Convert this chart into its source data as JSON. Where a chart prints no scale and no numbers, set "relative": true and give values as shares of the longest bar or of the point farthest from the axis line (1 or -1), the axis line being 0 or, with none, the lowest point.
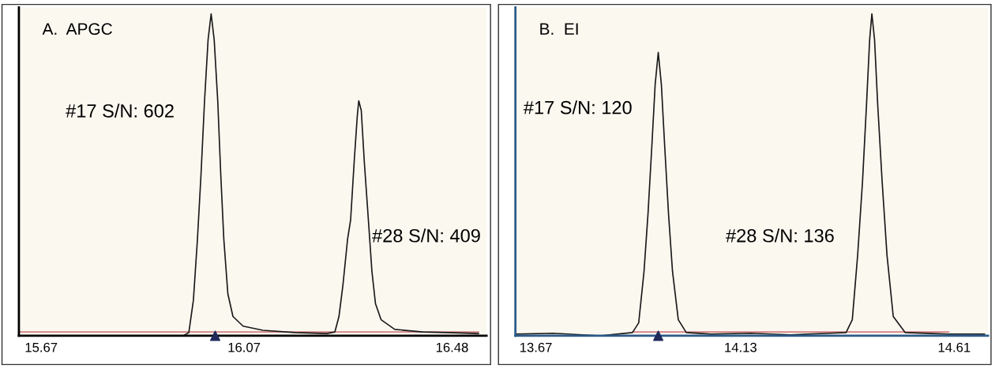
{
  "chart_data": [
    {
      "type": "line",
      "title": "A.  APGC",
      "relative": true,
      "xlim": [
        15.626,
        16.548
      ],
      "xticks": [
        15.67,
        16.07,
        16.48
      ],
      "grid": false,
      "legend": false,
      "series": [
        {
          "color": "#d08080",
          "x": [
            15.626,
            16.532
          ],
          "values": [
            0.012,
            0.012
          ]
        },
        {
          "color": "#1a1a1a",
          "x": [
            15.626,
            15.746,
            15.95,
            15.961,
            15.97,
            15.978,
            15.985,
            15.992,
            15.999,
            16.005,
            16.011,
            16.018,
            16.024,
            16.03,
            16.038,
            16.048,
            16.068,
            16.107,
            16.17,
            16.233,
            16.249,
            16.257,
            16.265,
            16.274,
            16.28,
            16.287,
            16.293,
            16.296,
            16.301,
            16.307,
            16.315,
            16.322,
            16.329,
            16.34,
            16.367,
            16.422,
            16.469,
            16.532
          ],
          "values": [
            0,
            0,
            0,
            0.01,
            0.11,
            0.3,
            0.5,
            0.73,
            0.92,
            1.0,
            0.92,
            0.73,
            0.5,
            0.3,
            0.13,
            0.06,
            0.03,
            0.017,
            0.01,
            0.007,
            0.012,
            0.06,
            0.16,
            0.3,
            0.36,
            0.54,
            0.68,
            0.73,
            0.7,
            0.54,
            0.36,
            0.2,
            0.1,
            0.05,
            0.02,
            0.012,
            0.01,
            0.007
          ]
        },
        {
          "type": "scatter",
          "marker": "triangle",
          "color": "#1f2a5a",
          "x": [
            16.013
          ],
          "values": [
            0
          ]
        }
      ],
      "annotations": [
        "#17 S/N: 602",
        "#28 S/N: 409"
      ]
    },
    {
      "type": "line",
      "title": "B.  EI",
      "relative": true,
      "xlim": [
        13.624,
        14.686
      ],
      "xticks": [
        13.67,
        14.13,
        14.61
      ],
      "grid": false,
      "legend": false,
      "series": [
        {
          "color": "#d08080",
          "x": [
            13.887,
            14.598
          ],
          "values": [
            0.012,
            0.012
          ]
        },
        {
          "color": "#1a1a1a",
          "x": [
            13.624,
            13.709,
            13.816,
            13.887,
            13.901,
            13.913,
            13.922,
            13.931,
            13.938,
            13.945,
            13.952,
            13.959,
            13.968,
            13.977,
            13.99,
            14.008,
            14.064,
            14.153,
            14.242,
            14.331,
            14.367,
            14.381,
            14.393,
            14.404,
            14.413,
            14.42,
            14.425,
            14.431,
            14.438,
            14.448,
            14.459,
            14.473,
            14.5,
            14.598,
            14.678
          ],
          "values": [
            0.005,
            0.008,
            0,
            0.01,
            0.04,
            0.2,
            0.38,
            0.6,
            0.78,
            0.88,
            0.78,
            0.6,
            0.38,
            0.2,
            0.05,
            0.01,
            0.005,
            0.008,
            0.003,
            0.008,
            0.01,
            0.05,
            0.25,
            0.48,
            0.72,
            0.92,
            1.0,
            0.92,
            0.72,
            0.48,
            0.25,
            0.06,
            0.01,
            0.005,
            0.005
          ]
        },
        {
          "type": "scatter",
          "marker": "triangle",
          "color": "#1f2a5a",
          "x": [
            13.945
          ],
          "values": [
            0
          ]
        }
      ],
      "annotations": [
        "#17 S/N: 120",
        "#28 S/N: 136"
      ]
    }
  ]
}
